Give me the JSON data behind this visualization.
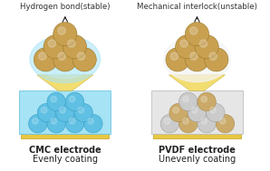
{
  "bg_color": "#ffffff",
  "title_left": "Hydrogen bond(stable)",
  "title_right": "Mechanical interlock(unstable)",
  "label_left_1": "CMC electrode",
  "label_left_2": "Evenly coating",
  "label_right_1": "PVDF electrode",
  "label_right_2": "Unevenly coating",
  "gold_sphere_color": "#C8A050",
  "gold_sphere_edge": "#9A7828",
  "blue_sphere_color": "#5BBDE0",
  "blue_sphere_edge": "#2890BB",
  "gray_sphere_color": "#C8C8C8",
  "gray_sphere_edge": "#909090",
  "cmc_blue": "#70CCEE",
  "gold_layer_color": "#E8C840",
  "gold_layer_edge": "#C0A020",
  "font_size_title": 6.2,
  "font_size_label": 7.0,
  "arrow_color": "#111111"
}
